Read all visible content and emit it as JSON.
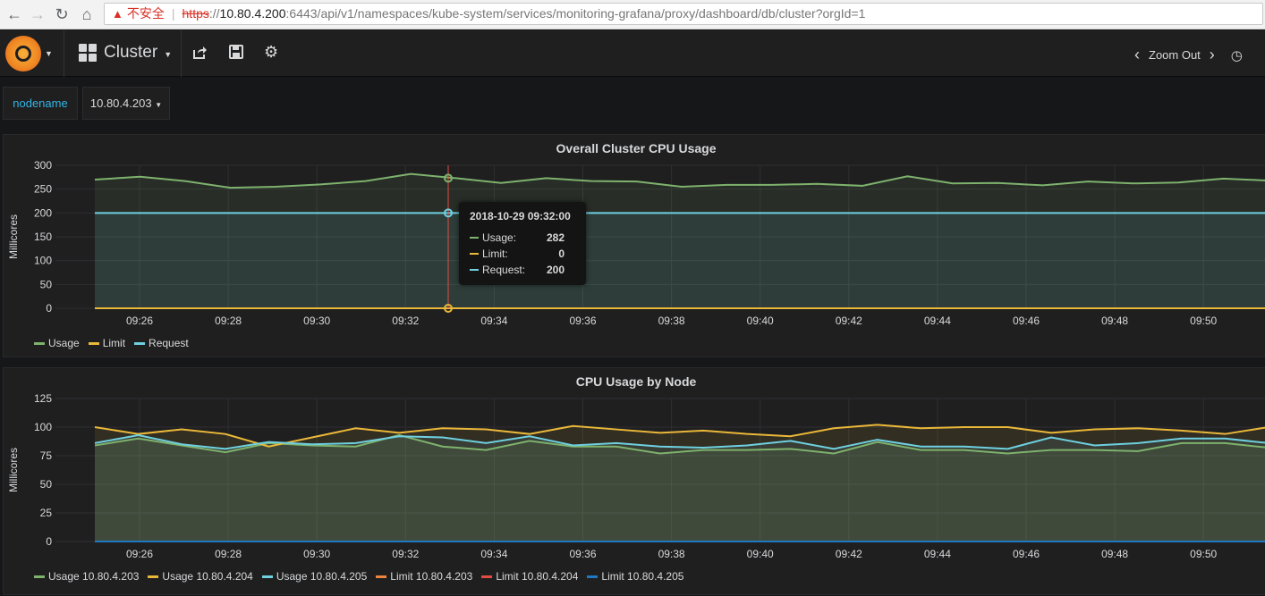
{
  "browser": {
    "insecure_label": "不安全",
    "url_protocol": "https",
    "url_sep": "://",
    "url_host": "10.80.4.200",
    "url_rest": ":6443/api/v1/namespaces/kube-system/services/monitoring-grafana/proxy/dashboard/db/cluster?orgId=1"
  },
  "navbar": {
    "dashboard_title": "Cluster",
    "zoom_label": "Zoom Out"
  },
  "templating": {
    "label": "nodename",
    "value": "10.80.4.203"
  },
  "colors": {
    "green": "#7eb26d",
    "yellow": "#eab839",
    "cyan": "#6ed0e0",
    "orange": "#ef843c",
    "red": "#e24d42",
    "blue": "#1f78c1"
  },
  "chart_data": [
    {
      "type": "line",
      "title": "Overall Cluster CPU Usage",
      "ylabel": "Millicores",
      "ylim": [
        0,
        300
      ],
      "yticks": [
        "0",
        "50",
        "100",
        "150",
        "200",
        "250",
        "300"
      ],
      "xticks": [
        "09:26",
        "09:28",
        "09:30",
        "09:32",
        "09:34",
        "09:36",
        "09:38",
        "09:40",
        "09:42",
        "09:44",
        "09:46",
        "09:48",
        "09:50"
      ],
      "x_start_minute": 25,
      "x_end_minute": 51.5,
      "fill": true,
      "series": [
        {
          "name": "Usage",
          "color": "#7eb26d",
          "values": [
            270,
            276,
            267,
            253,
            255,
            260,
            267,
            282,
            273,
            263,
            273,
            267,
            266,
            255,
            259,
            259,
            261,
            257,
            277,
            262,
            263,
            258,
            266,
            262,
            264,
            272,
            268
          ]
        },
        {
          "name": "Limit",
          "color": "#eab839",
          "values": [
            0,
            0,
            0,
            0,
            0,
            0,
            0,
            0,
            0,
            0,
            0,
            0,
            0,
            0,
            0,
            0,
            0,
            0,
            0,
            0,
            0,
            0,
            0,
            0,
            0,
            0,
            0
          ]
        },
        {
          "name": "Request",
          "color": "#6ed0e0",
          "values": [
            200,
            200,
            200,
            200,
            200,
            200,
            200,
            200,
            200,
            200,
            200,
            200,
            200,
            200,
            200,
            200,
            200,
            200,
            200,
            200,
            200,
            200,
            200,
            200,
            200,
            200,
            200
          ]
        }
      ],
      "legend": [
        "Usage",
        "Limit",
        "Request"
      ],
      "tooltip": {
        "time": "2018-10-29 09:32:00",
        "rows": [
          {
            "name": "Usage:",
            "value": "282",
            "color": "#7eb26d"
          },
          {
            "name": "Limit:",
            "value": "0",
            "color": "#eab839"
          },
          {
            "name": "Request:",
            "value": "200",
            "color": "#6ed0e0"
          }
        ]
      }
    },
    {
      "type": "line",
      "title": "CPU Usage by Node",
      "ylabel": "Millicores",
      "ylim": [
        0,
        125
      ],
      "yticks": [
        "0",
        "25",
        "50",
        "75",
        "100",
        "125"
      ],
      "xticks": [
        "09:26",
        "09:28",
        "09:30",
        "09:32",
        "09:34",
        "09:36",
        "09:38",
        "09:40",
        "09:42",
        "09:44",
        "09:46",
        "09:48",
        "09:50"
      ],
      "x_start_minute": 25,
      "x_end_minute": 51.5,
      "fill": true,
      "series": [
        {
          "name": "Usage 10.80.4.203",
          "color": "#7eb26d",
          "values": [
            84,
            90,
            84,
            78,
            86,
            84,
            83,
            93,
            83,
            80,
            88,
            83,
            83,
            77,
            80,
            80,
            81,
            77,
            87,
            80,
            80,
            77,
            80,
            80,
            79,
            86,
            86,
            82
          ]
        },
        {
          "name": "Usage 10.80.4.204",
          "color": "#eab839",
          "values": [
            100,
            94,
            98,
            94,
            83,
            91,
            99,
            95,
            99,
            98,
            94,
            101,
            98,
            95,
            97,
            94,
            92,
            99,
            102,
            99,
            100,
            100,
            95,
            98,
            99,
            97,
            94,
            100
          ]
        },
        {
          "name": "Usage 10.80.4.205",
          "color": "#6ed0e0",
          "values": [
            86,
            93,
            85,
            81,
            87,
            85,
            86,
            92,
            91,
            86,
            92,
            84,
            86,
            83,
            82,
            84,
            88,
            81,
            89,
            83,
            83,
            81,
            91,
            84,
            86,
            90,
            90,
            86
          ]
        },
        {
          "name": "Limit 10.80.4.203",
          "color": "#ef843c",
          "values": [
            0,
            0,
            0,
            0,
            0,
            0,
            0,
            0,
            0,
            0,
            0,
            0,
            0,
            0,
            0,
            0,
            0,
            0,
            0,
            0,
            0,
            0,
            0,
            0,
            0,
            0,
            0,
            0
          ]
        },
        {
          "name": "Limit 10.80.4.204",
          "color": "#e24d42",
          "values": [
            0,
            0,
            0,
            0,
            0,
            0,
            0,
            0,
            0,
            0,
            0,
            0,
            0,
            0,
            0,
            0,
            0,
            0,
            0,
            0,
            0,
            0,
            0,
            0,
            0,
            0,
            0,
            0
          ]
        },
        {
          "name": "Limit 10.80.4.205",
          "color": "#1f78c1",
          "values": [
            0,
            0,
            0,
            0,
            0,
            0,
            0,
            0,
            0,
            0,
            0,
            0,
            0,
            0,
            0,
            0,
            0,
            0,
            0,
            0,
            0,
            0,
            0,
            0,
            0,
            0,
            0,
            0
          ]
        }
      ],
      "legend": [
        "Usage 10.80.4.203",
        "Usage 10.80.4.204",
        "Usage 10.80.4.205",
        "Limit 10.80.4.203",
        "Limit 10.80.4.204",
        "Limit 10.80.4.205"
      ]
    }
  ]
}
